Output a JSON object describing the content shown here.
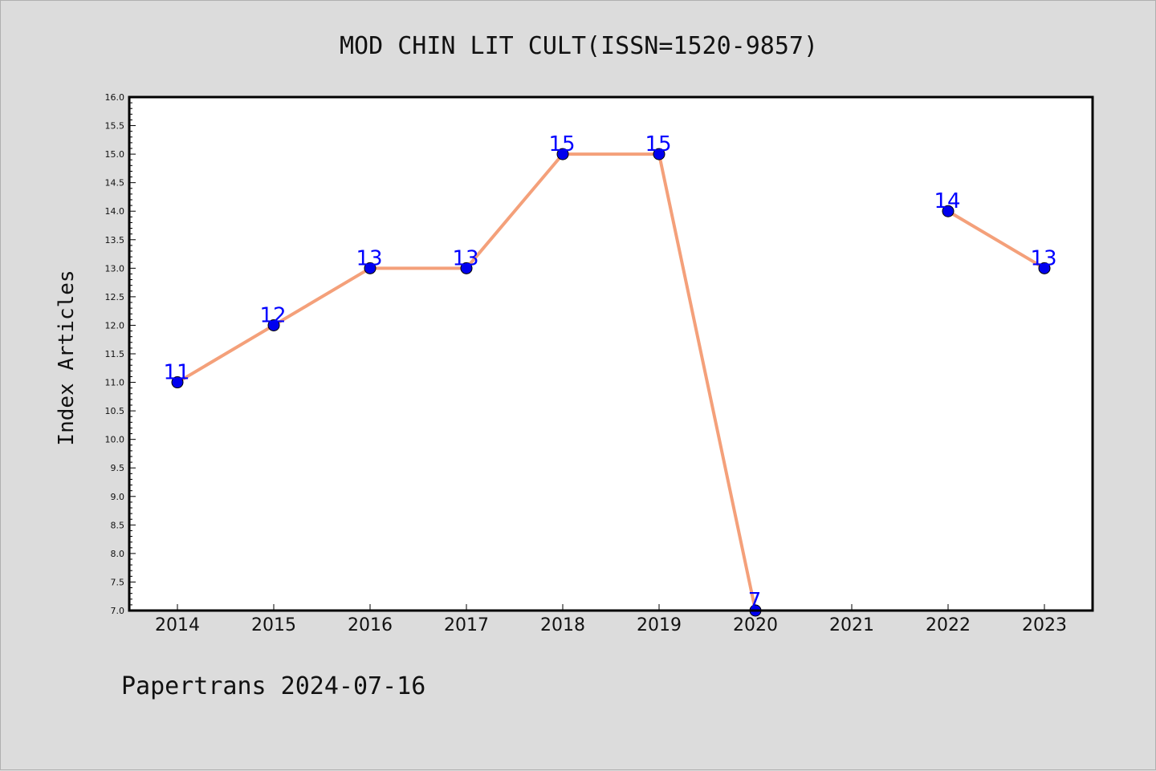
{
  "chart_data": {
    "type": "line",
    "title": "MOD CHIN LIT CULT(ISSN=1520-9857)",
    "ylabel": "Index Articles",
    "xlabel": "",
    "footer": "Papertrans 2024-07-16",
    "categories": [
      "2014",
      "2015",
      "2016",
      "2017",
      "2018",
      "2019",
      "2020",
      "2021",
      "2022",
      "2023"
    ],
    "values": [
      11,
      12,
      13,
      13,
      15,
      15,
      7,
      null,
      14,
      13
    ],
    "ylim": [
      7.0,
      16.0
    ],
    "yticks": [
      "7.0",
      "7.5",
      "8.0",
      "8.5",
      "9.0",
      "9.5",
      "10.0",
      "10.5",
      "11.0",
      "11.5",
      "12.0",
      "12.5",
      "13.0",
      "13.5",
      "14.0",
      "14.5",
      "15.0",
      "15.5",
      "16.0"
    ],
    "grid": false,
    "colors": {
      "line": "#f4a07a",
      "marker": "#0000ee",
      "label": "#0000ff",
      "background": "#dcdcdc",
      "plot_background": "#ffffff"
    }
  }
}
